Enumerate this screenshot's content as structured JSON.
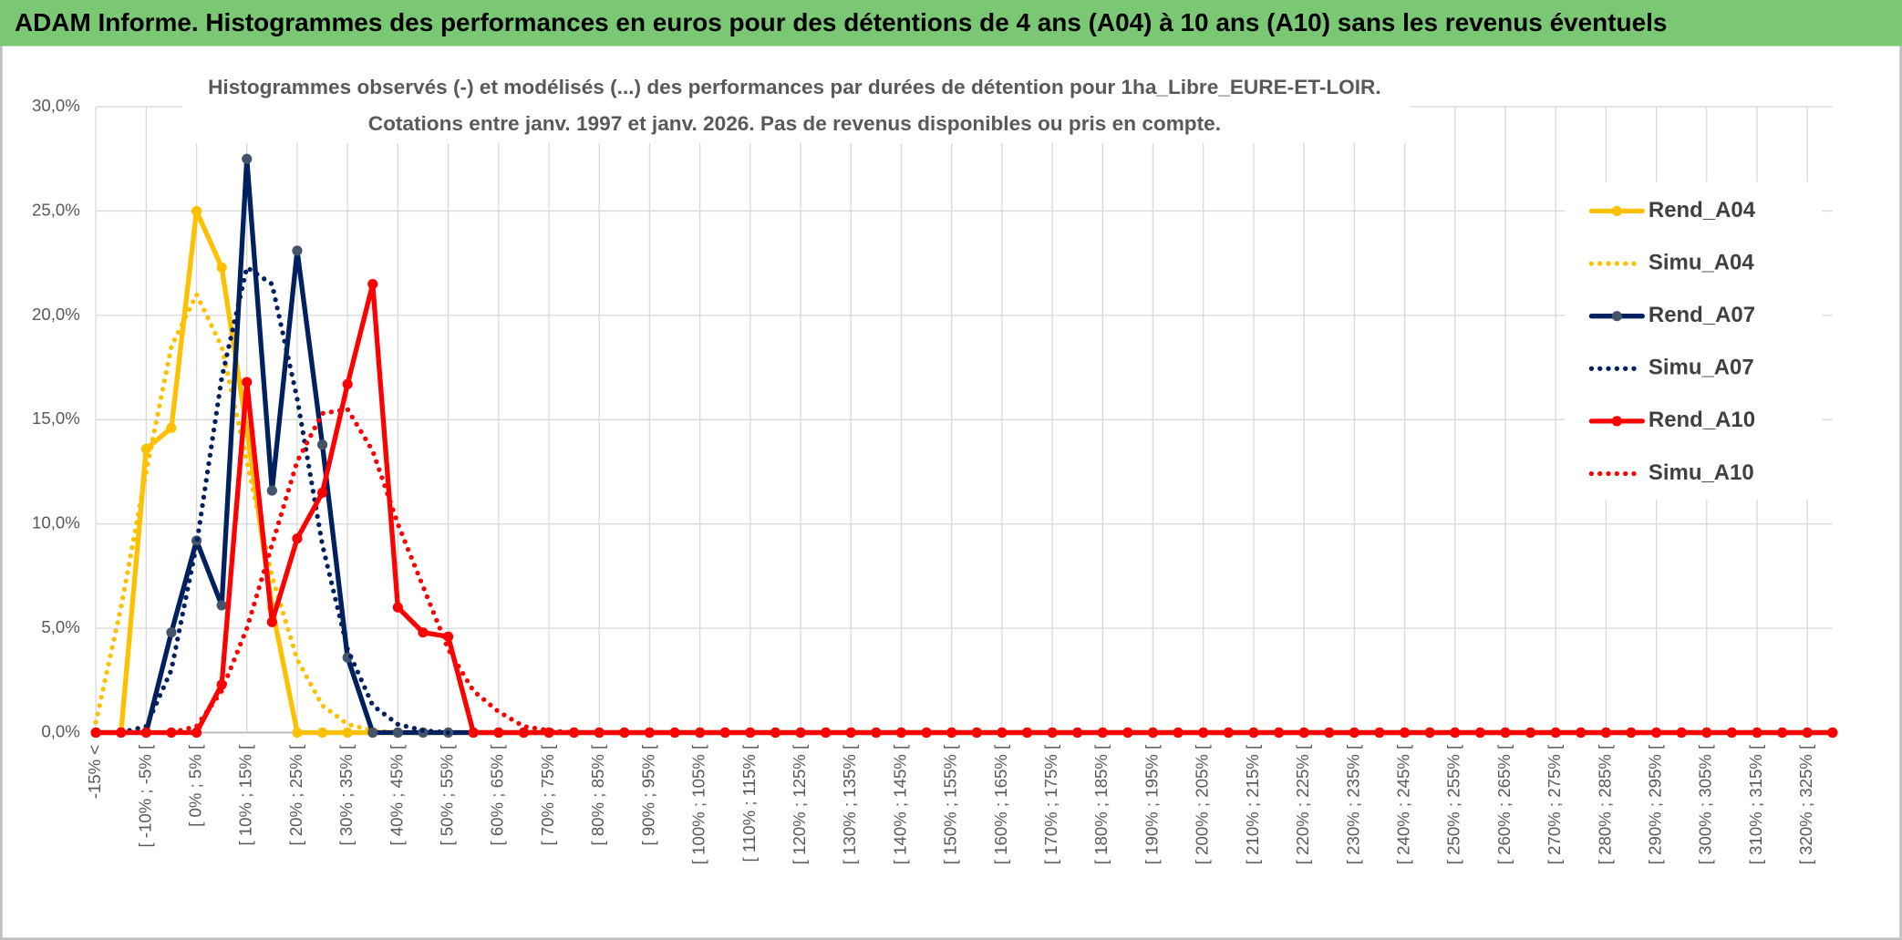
{
  "chart_data": {
    "type": "line",
    "title": "ADAM Informe. Histogrammes des performances en euros pour des détentions de 4 ans (A04) à 10 ans (A10) sans les revenus éventuels",
    "subtitle": [
      "Histogrammes observés (-) et modélisés (...) des performances par durées de détention pour 1ha_Libre_EURE-ET-LOIR.",
      "Cotations entre janv. 1997 et janv. 2026. Pas de revenus disponibles ou pris en compte."
    ],
    "categories": [
      "-15% <",
      null,
      "[ -10% ; -5% [",
      null,
      "[ 0% ; 5% [",
      null,
      "[ 10% ; 15% [",
      null,
      "[ 20% ; 25% [",
      null,
      "[ 30% ; 35% [",
      null,
      "[ 40% ; 45% [",
      null,
      "[ 50% ; 55% [",
      null,
      "[ 60% ; 65% [",
      null,
      "[ 70% ; 75% [",
      null,
      "[ 80% ; 85% [",
      null,
      "[ 90% ; 95% [",
      null,
      "[ 100% ; 105% [",
      null,
      "[ 110% ; 115% [",
      null,
      "[ 120% ; 125% [",
      null,
      "[ 130% ; 135% [",
      null,
      "[ 140% ; 145% [",
      null,
      "[ 150% ; 155% [",
      null,
      "[ 160% ; 165% [",
      null,
      "[ 170% ; 175% [",
      null,
      "[ 180% ; 185% [",
      null,
      "[ 190% ; 195% [",
      null,
      "[ 200% ; 205% [",
      null,
      "[ 210% ; 215% [",
      null,
      "[ 220% ; 225% [",
      null,
      "[ 230% ; 235% [",
      null,
      "[ 240% ; 245% [",
      null,
      "[ 250% ; 255% [",
      null,
      "[ 260% ; 265% [",
      null,
      "[ 270% ; 275% [",
      null,
      "[ 280% ; 285% [",
      null,
      "[ 290% ; 295% [",
      null,
      "[ 300% ; 305% [",
      null,
      "[ 310% ; 315% [",
      null,
      "[ 320% ; 325% [",
      null
    ],
    "series": [
      {
        "name": "Rend_A04",
        "color": "#ffc000",
        "line_style": "solid",
        "values": [
          0,
          0,
          13.6,
          14.6,
          25.0,
          22.3,
          14.5,
          6.0,
          0,
          0,
          0,
          0,
          0,
          0,
          0,
          0,
          0,
          0,
          0,
          0,
          0,
          0,
          0,
          0,
          0,
          0,
          0,
          0,
          0,
          0,
          0,
          0,
          0,
          0,
          0,
          0,
          0,
          0,
          0,
          0,
          0,
          0,
          0,
          0,
          0,
          0,
          0,
          0,
          0,
          0,
          0,
          0,
          0,
          0,
          0,
          0,
          0,
          0,
          0,
          0,
          0,
          0,
          0,
          0,
          0,
          0,
          0,
          0,
          0,
          0
        ]
      },
      {
        "name": "Simu_A04",
        "color": "#ffc000",
        "line_style": "dotted",
        "values": [
          0.5,
          6,
          12.5,
          18.5,
          21,
          18.5,
          13,
          7.5,
          3.5,
          1.3,
          0.4,
          0.1,
          0,
          0,
          0,
          0,
          0,
          0,
          0,
          0,
          0,
          0,
          0,
          0,
          0,
          0,
          0,
          0,
          0,
          0,
          0,
          0,
          0,
          0,
          0,
          0,
          0,
          0,
          0,
          0,
          0,
          0,
          0,
          0,
          0,
          0,
          0,
          0,
          0,
          0,
          0,
          0,
          0,
          0,
          0,
          0,
          0,
          0,
          0,
          0,
          0,
          0,
          0,
          0,
          0,
          0,
          0,
          0,
          0,
          0
        ]
      },
      {
        "name": "Rend_A07",
        "color": "#002060",
        "marker_color": "#44546a",
        "line_style": "solid",
        "values": [
          0,
          0,
          0,
          4.8,
          9.2,
          6.1,
          27.5,
          11.6,
          23.1,
          13.8,
          3.6,
          0,
          0,
          0,
          0,
          0,
          0,
          0,
          0,
          0,
          0,
          0,
          0,
          0,
          0,
          0,
          0,
          0,
          0,
          0,
          0,
          0,
          0,
          0,
          0,
          0,
          0,
          0,
          0,
          0,
          0,
          0,
          0,
          0,
          0,
          0,
          0,
          0,
          0,
          0,
          0,
          0,
          0,
          0,
          0,
          0,
          0,
          0,
          0,
          0,
          0,
          0,
          0,
          0,
          0,
          0,
          0,
          0,
          0,
          0
        ]
      },
      {
        "name": "Simu_A07",
        "color": "#002060",
        "line_style": "dotted",
        "values": [
          0,
          0,
          0.3,
          3,
          9,
          17,
          22.3,
          21.5,
          16,
          9,
          4,
          1.3,
          0.4,
          0.1,
          0,
          0,
          0,
          0,
          0,
          0,
          0,
          0,
          0,
          0,
          0,
          0,
          0,
          0,
          0,
          0,
          0,
          0,
          0,
          0,
          0,
          0,
          0,
          0,
          0,
          0,
          0,
          0,
          0,
          0,
          0,
          0,
          0,
          0,
          0,
          0,
          0,
          0,
          0,
          0,
          0,
          0,
          0,
          0,
          0,
          0,
          0,
          0,
          0,
          0,
          0,
          0,
          0,
          0,
          0,
          0
        ]
      },
      {
        "name": "Rend_A10",
        "color": "#ff0000",
        "line_style": "solid",
        "values": [
          0,
          0,
          0,
          0,
          0,
          2.3,
          16.8,
          5.3,
          9.3,
          11.5,
          16.7,
          21.5,
          6.0,
          4.8,
          4.6,
          0,
          0,
          0,
          0,
          0,
          0,
          0,
          0,
          0,
          0,
          0,
          0,
          0,
          0,
          0,
          0,
          0,
          0,
          0,
          0,
          0,
          0,
          0,
          0,
          0,
          0,
          0,
          0,
          0,
          0,
          0,
          0,
          0,
          0,
          0,
          0,
          0,
          0,
          0,
          0,
          0,
          0,
          0,
          0,
          0,
          0,
          0,
          0,
          0,
          0,
          0,
          0,
          0,
          0,
          0
        ]
      },
      {
        "name": "Simu_A10",
        "color": "#ff0000",
        "line_style": "dotted",
        "values": [
          0,
          0,
          0,
          0,
          0.3,
          2,
          5,
          9,
          13,
          15.3,
          15.5,
          13.5,
          10,
          7,
          4,
          2,
          1,
          0.3,
          0.1,
          0,
          0,
          0,
          0,
          0,
          0,
          0,
          0,
          0,
          0,
          0,
          0,
          0,
          0,
          0,
          0,
          0,
          0,
          0,
          0,
          0,
          0,
          0,
          0,
          0,
          0,
          0,
          0,
          0,
          0,
          0,
          0,
          0,
          0,
          0,
          0,
          0,
          0,
          0,
          0,
          0,
          0,
          0,
          0,
          0,
          0,
          0,
          0,
          0,
          0,
          0
        ]
      }
    ],
    "ylim": [
      0,
      30
    ],
    "yticks": [
      {
        "value": 0,
        "label": "0,0%"
      },
      {
        "value": 5,
        "label": "5,0%"
      },
      {
        "value": 10,
        "label": "10,0%"
      },
      {
        "value": 15,
        "label": "15,0%"
      },
      {
        "value": 20,
        "label": "20,0%"
      },
      {
        "value": 25,
        "label": "25,0%"
      },
      {
        "value": 30,
        "label": "30,0%"
      }
    ],
    "grid": true,
    "legend": "right"
  }
}
